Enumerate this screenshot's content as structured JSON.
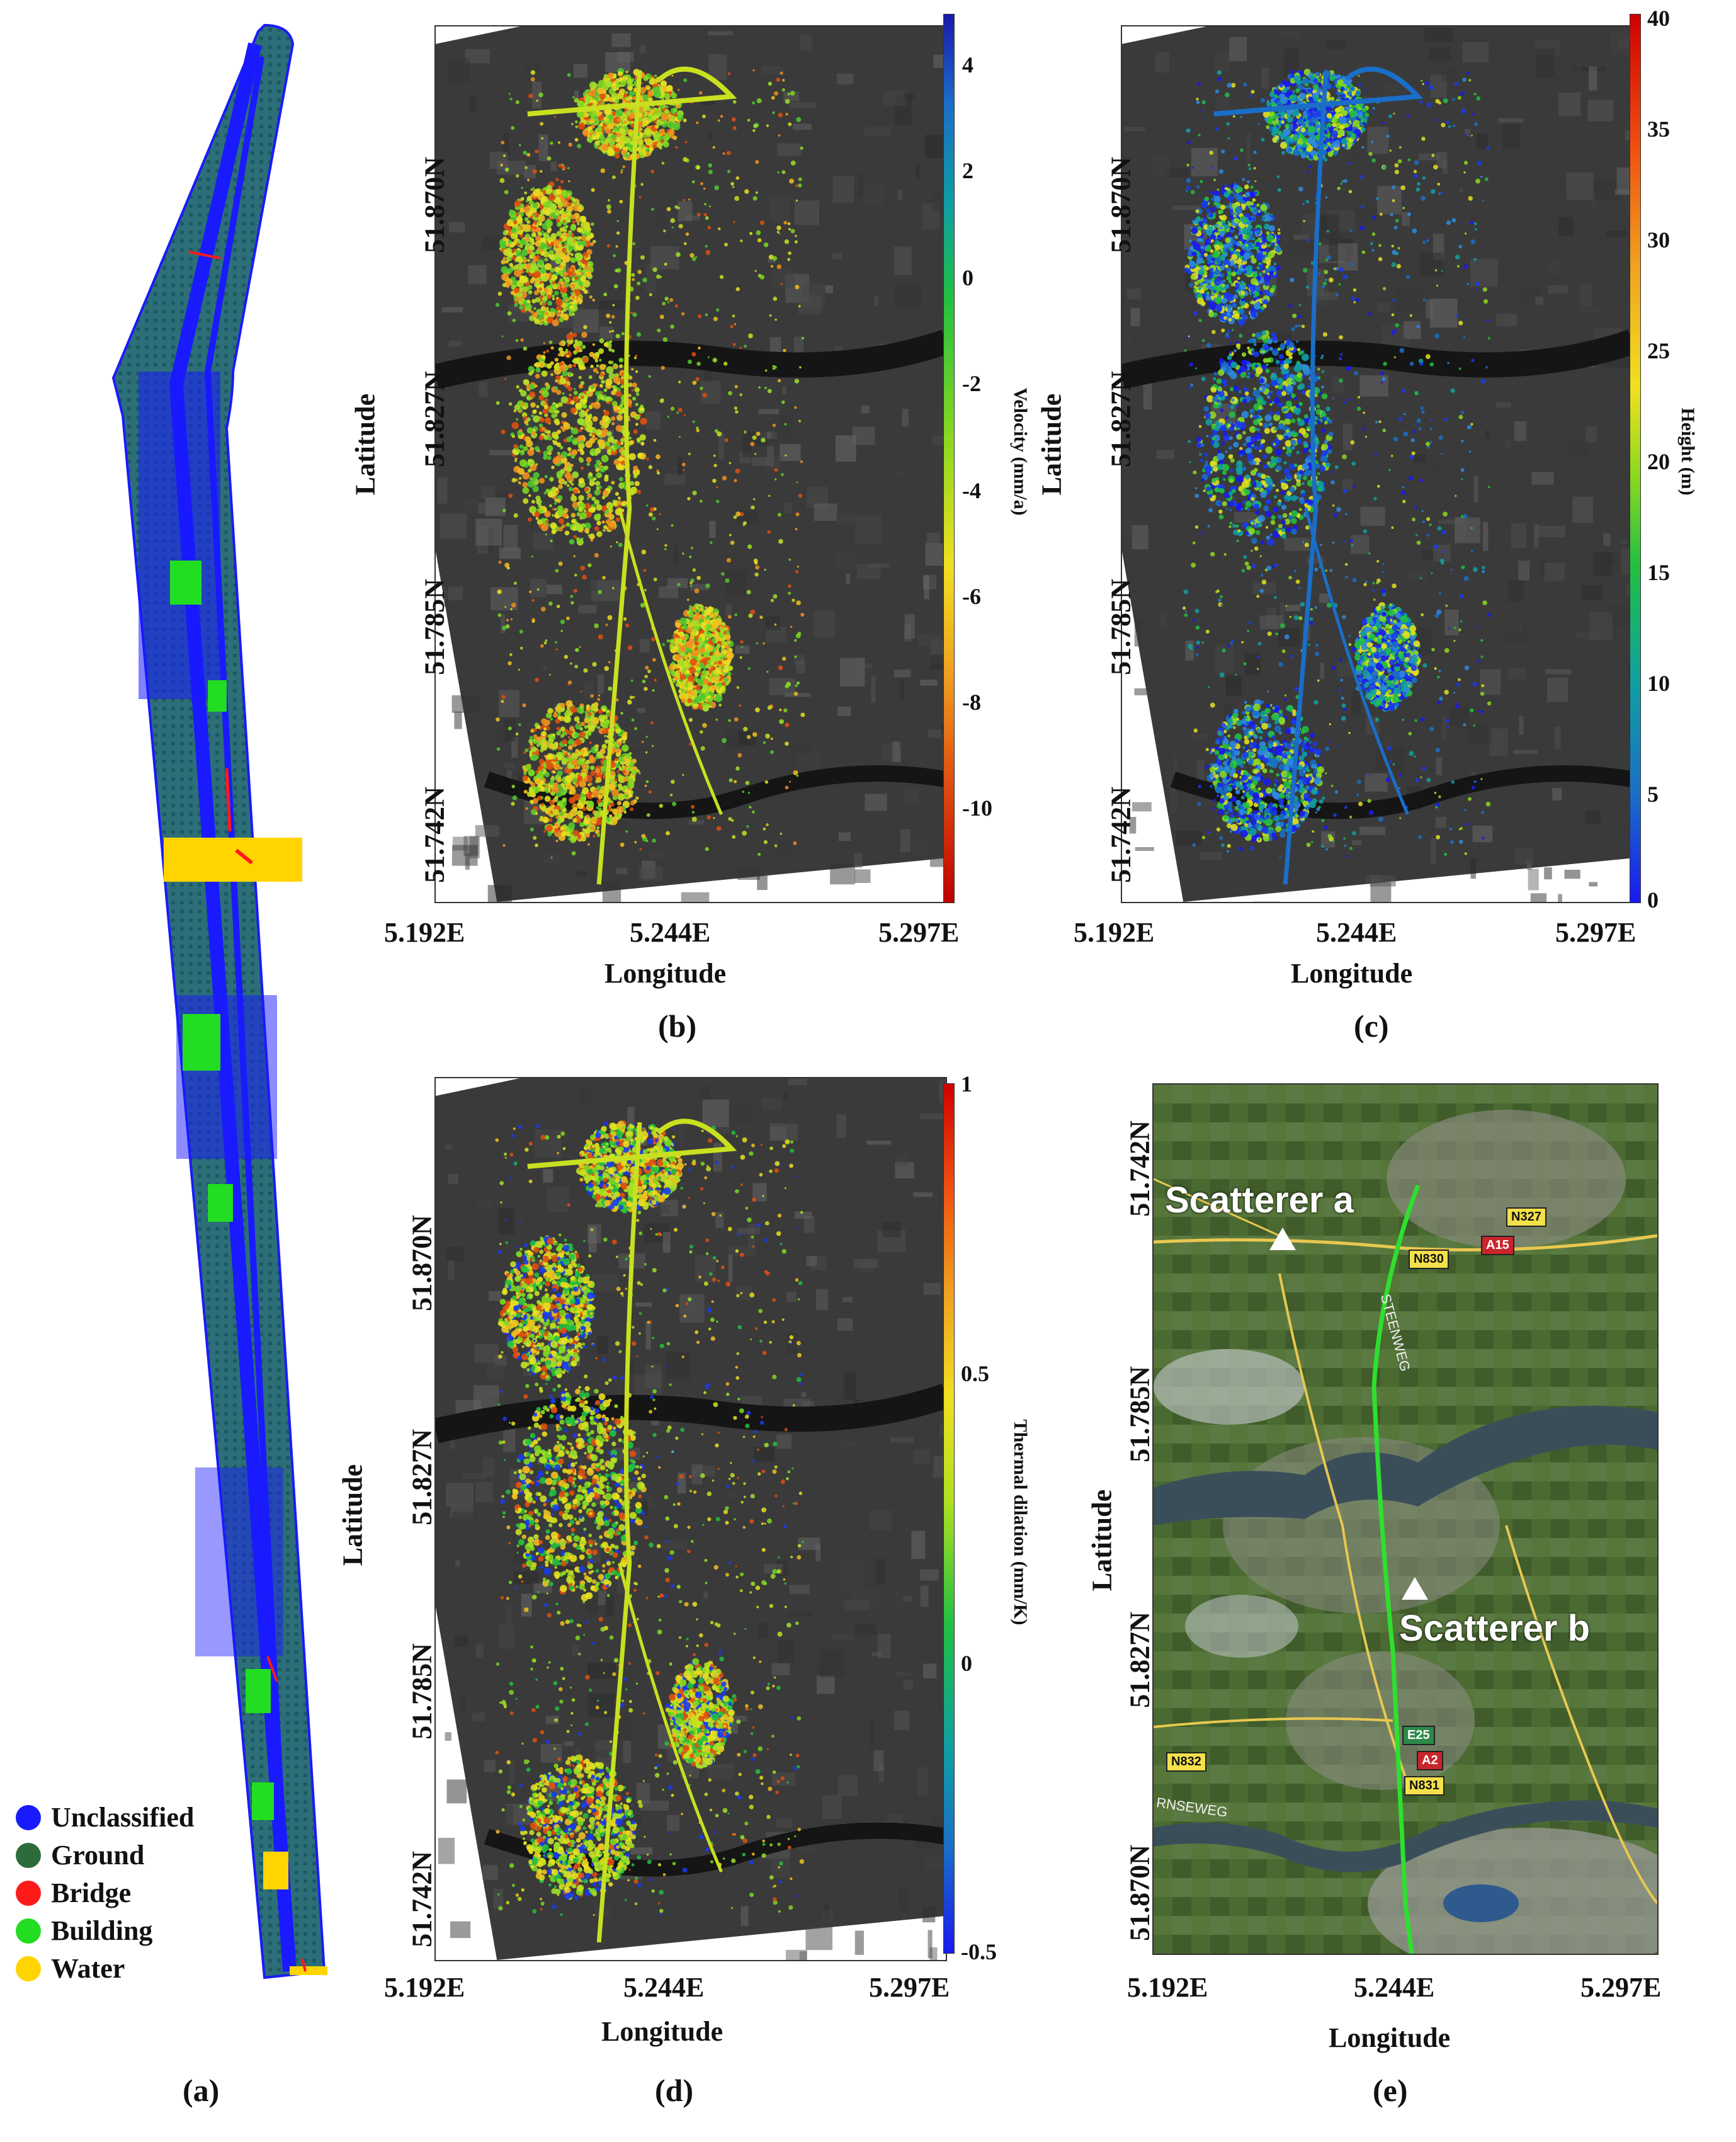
{
  "panel_a": {
    "caption": "(a)",
    "legend": [
      {
        "label": "Unclassified",
        "color": "#1a1aff"
      },
      {
        "label": "Ground",
        "color": "#2e6b3a"
      },
      {
        "label": "Bridge",
        "color": "#ff1a1a"
      },
      {
        "label": "Building",
        "color": "#22dd22"
      },
      {
        "label": "Water",
        "color": "#ffd400"
      }
    ]
  },
  "panel_b": {
    "caption": "(b)",
    "xlabel": "Longitude",
    "ylabel": "Latitude",
    "xticks": [
      "5.192E",
      "5.244E",
      "5.297E"
    ],
    "yticks": [
      "51.870N",
      "51.827N",
      "51.785N",
      "51.742N"
    ],
    "colorbar": {
      "title": "Velocity (mm/a)",
      "ticks": [
        "4",
        "2",
        "0",
        "-2",
        "-4",
        "-6",
        "-8",
        "-10"
      ],
      "colormap": "blue-green-yellow-red"
    }
  },
  "panel_c": {
    "caption": "(c)",
    "xlabel": "Longitude",
    "ylabel": "Latitude",
    "xticks": [
      "5.192E",
      "5.244E",
      "5.297E"
    ],
    "yticks": [
      "51.870N",
      "51.827N",
      "51.785N",
      "51.742N"
    ],
    "colorbar": {
      "title": "Height (m)",
      "ticks": [
        "40",
        "35",
        "30",
        "25",
        "20",
        "15",
        "10",
        "5",
        "0"
      ],
      "colormap": "red-yellow-green-blue"
    }
  },
  "panel_d": {
    "caption": "(d)",
    "xlabel": "Longitude",
    "ylabel": "Latitude",
    "xticks": [
      "5.192E",
      "5.244E",
      "5.297E"
    ],
    "yticks": [
      "51.870N",
      "51.827N",
      "51.785N",
      "51.742N"
    ],
    "colorbar": {
      "title": "Thermal dilation (mm/K)",
      "ticks": [
        "1",
        "0.5",
        "0",
        "-0.5"
      ],
      "colormap": "red-yellow-green-blue"
    }
  },
  "panel_e": {
    "caption": "(e)",
    "xlabel": "Longitude",
    "ylabel": "Latitude",
    "xticks": [
      "5.192E",
      "5.244E",
      "5.297E"
    ],
    "yticks": [
      "51.742N",
      "51.785N",
      "51.827N",
      "51.870N"
    ],
    "scatterers": [
      "Scatterer a",
      "Scatterer b"
    ],
    "road_labels": [
      {
        "text": "N327",
        "color": "#f3e04a"
      },
      {
        "text": "A15",
        "color": "#c8262c"
      },
      {
        "text": "N830",
        "color": "#f3e04a"
      },
      {
        "text": "E25",
        "color": "#2f8a4a"
      },
      {
        "text": "A2",
        "color": "#c8262c"
      },
      {
        "text": "N831",
        "color": "#f3e04a"
      },
      {
        "text": "N832",
        "color": "#f3e04a"
      }
    ],
    "street_labels": [
      "STEENWEG",
      "RNSEWEG"
    ]
  }
}
